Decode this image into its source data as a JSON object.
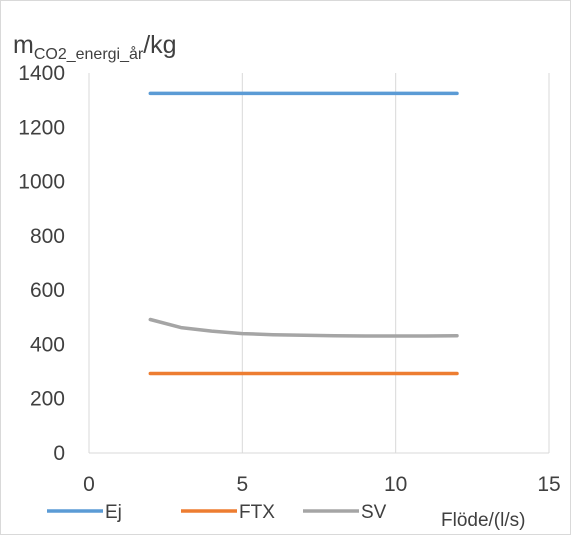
{
  "chart_data": {
    "type": "line",
    "ylabel": {
      "main": "m",
      "subscript": "CO2_energi_år",
      "suffix": "/kg"
    },
    "xlabel": "Flöde/(l/s)",
    "xlim": [
      0,
      15
    ],
    "ylim": [
      0,
      1400
    ],
    "xticks": [
      "0",
      "5",
      "10",
      "15"
    ],
    "yticks": [
      "0",
      "200",
      "400",
      "600",
      "800",
      "1000",
      "1200",
      "1400"
    ],
    "grid": "vertical",
    "legend_position": "bottom",
    "series": [
      {
        "name": "Ej",
        "color": "#5b9bd5",
        "x": [
          2,
          3,
          4,
          5,
          6,
          7,
          8,
          9,
          10,
          11,
          12
        ],
        "y": [
          1325,
          1325,
          1325,
          1325,
          1325,
          1325,
          1325,
          1325,
          1325,
          1325,
          1325
        ]
      },
      {
        "name": "FTX",
        "color": "#ed7d31",
        "x": [
          2,
          3,
          4,
          5,
          6,
          7,
          8,
          9,
          10,
          11,
          12
        ],
        "y": [
          293,
          293,
          293,
          293,
          293,
          293,
          293,
          293,
          293,
          293,
          293
        ]
      },
      {
        "name": "SV",
        "color": "#a5a5a5",
        "x": [
          2,
          3,
          4,
          5,
          6,
          7,
          8,
          9,
          10,
          11,
          12
        ],
        "y": [
          492,
          462,
          449,
          440,
          436,
          434,
          432,
          431,
          431,
          431,
          432
        ]
      }
    ]
  }
}
